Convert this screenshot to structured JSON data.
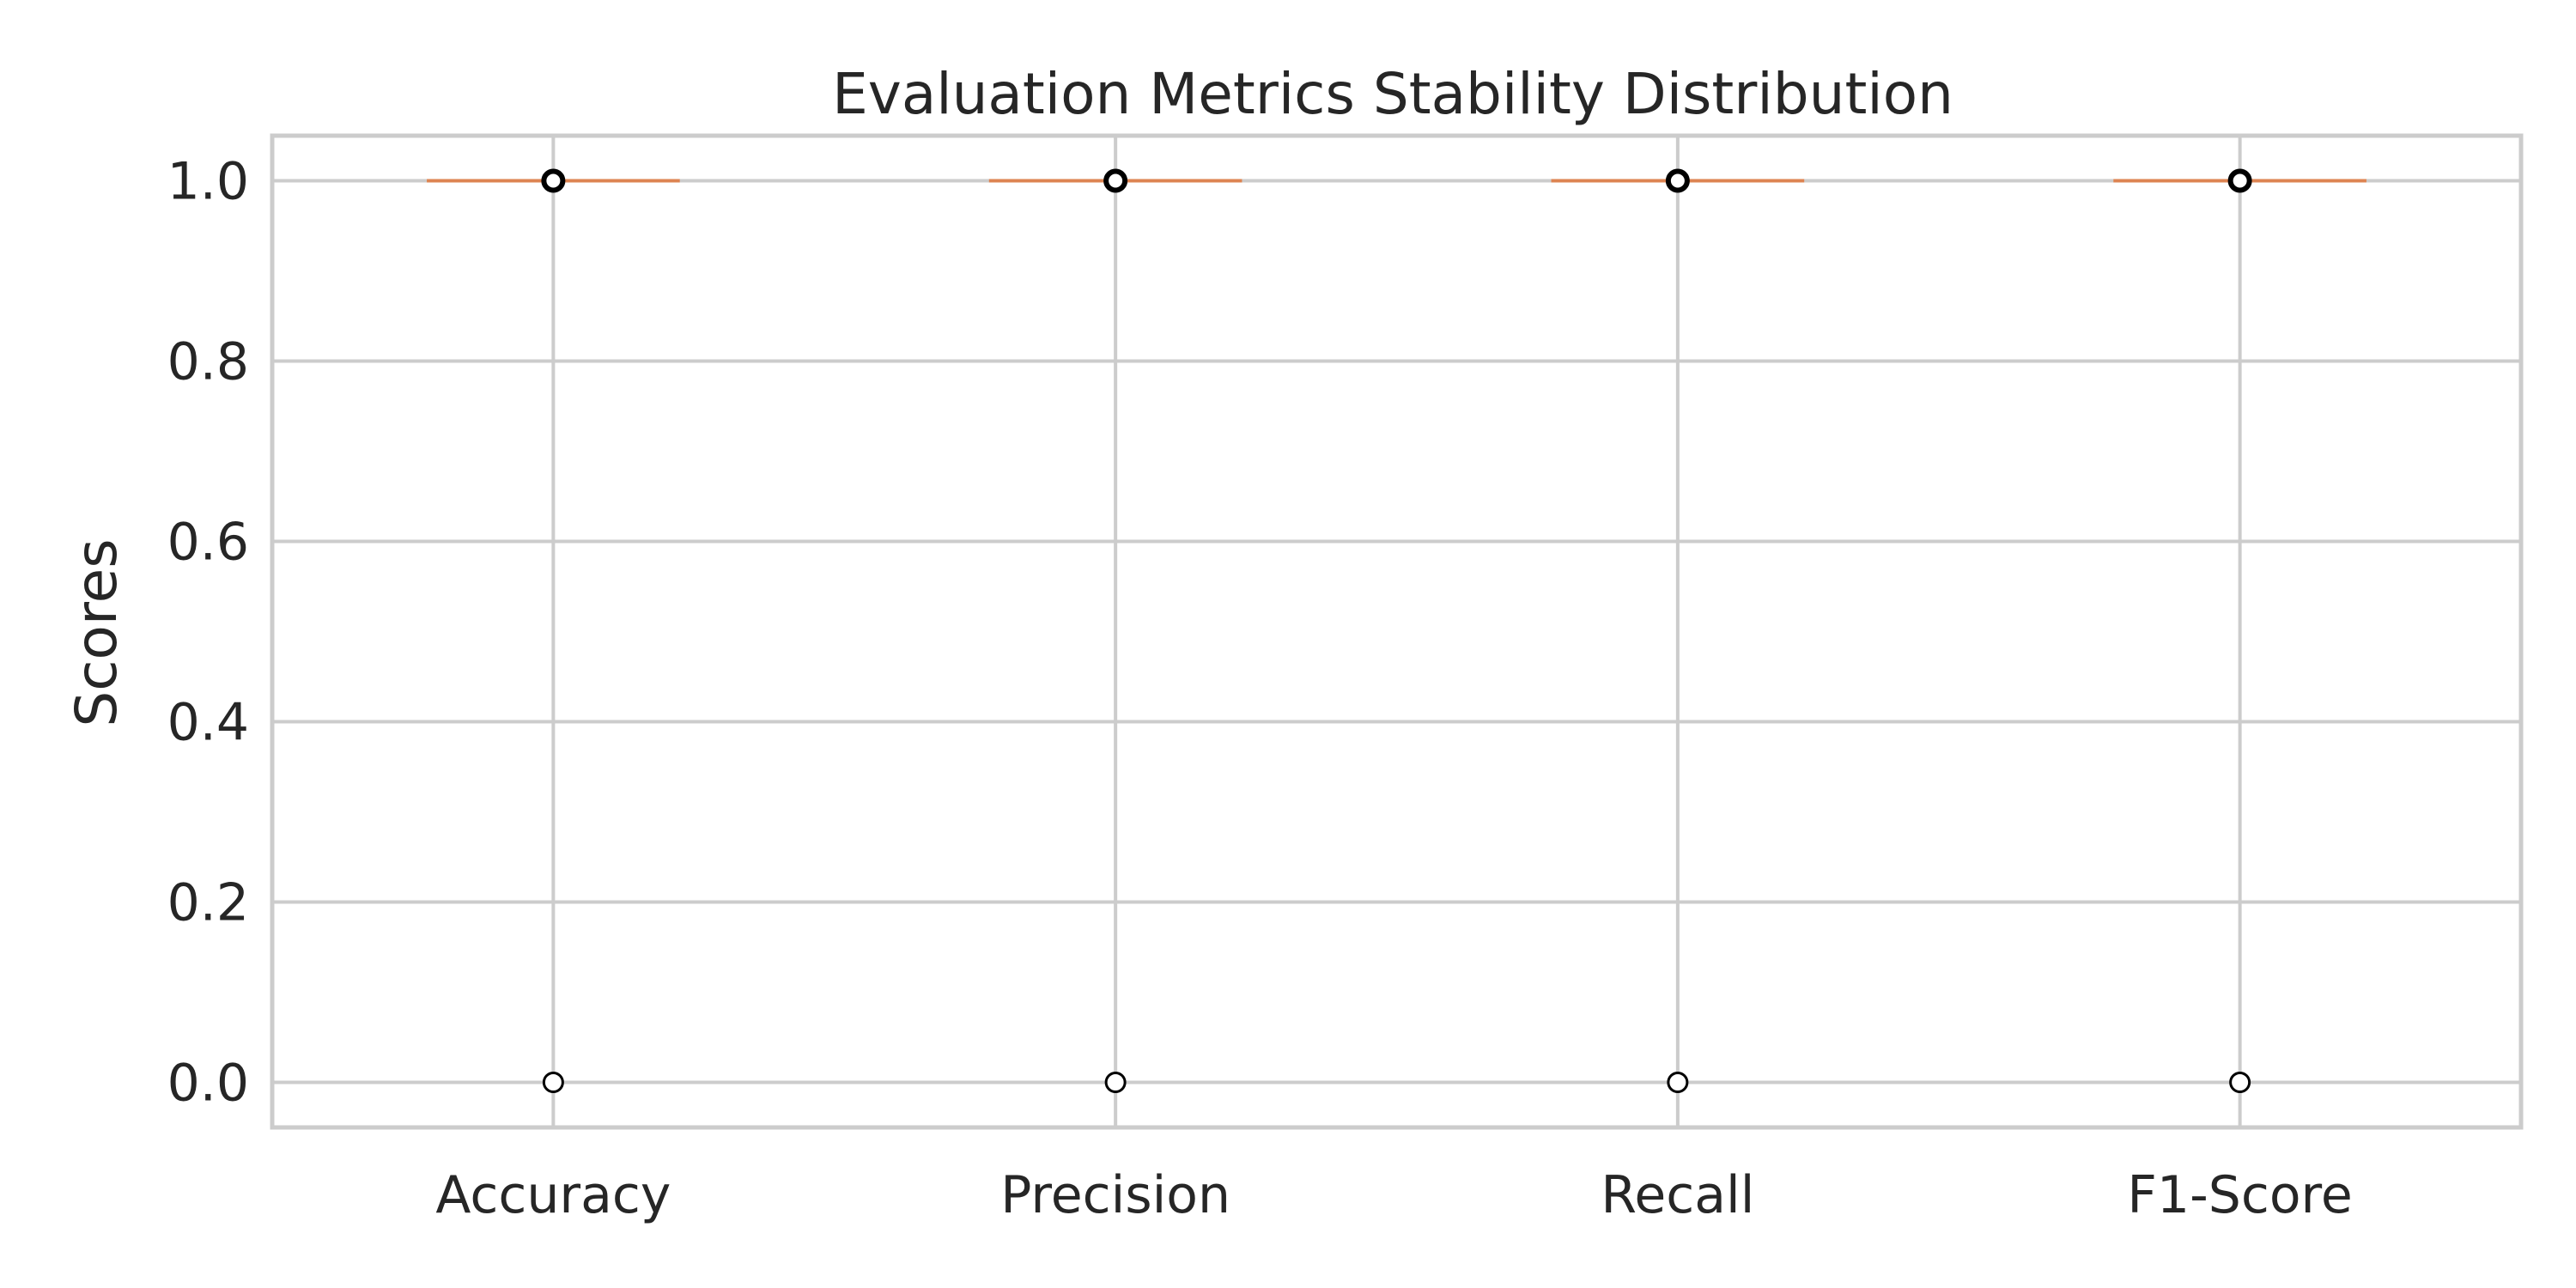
{
  "chart_data": {
    "type": "box",
    "title": "Evaluation Metrics Stability Distribution",
    "xlabel": "",
    "ylabel": "Scores",
    "categories": [
      "Accuracy",
      "Precision",
      "Recall",
      "F1-Score"
    ],
    "boxes": [
      {
        "category": "Accuracy",
        "q1": 1.0,
        "median": 1.0,
        "q3": 1.0,
        "whisker_low": 1.0,
        "whisker_high": 1.0,
        "outliers": [
          0.0,
          1.0
        ]
      },
      {
        "category": "Precision",
        "q1": 1.0,
        "median": 1.0,
        "q3": 1.0,
        "whisker_low": 1.0,
        "whisker_high": 1.0,
        "outliers": [
          0.0,
          1.0
        ]
      },
      {
        "category": "Recall",
        "q1": 1.0,
        "median": 1.0,
        "q3": 1.0,
        "whisker_low": 1.0,
        "whisker_high": 1.0,
        "outliers": [
          0.0,
          1.0
        ]
      },
      {
        "category": "F1-Score",
        "q1": 1.0,
        "median": 1.0,
        "q3": 1.0,
        "whisker_low": 1.0,
        "whisker_high": 1.0,
        "outliers": [
          0.0,
          1.0
        ]
      }
    ],
    "yticks": [
      "0.0",
      "0.2",
      "0.4",
      "0.6",
      "0.8",
      "1.0"
    ],
    "ylim": [
      -0.05,
      1.05
    ],
    "grid": true,
    "median_color": "#dd8452",
    "outlier_edge_color": "#000000",
    "grid_color": "#cccccc",
    "text_color": "#262626"
  }
}
